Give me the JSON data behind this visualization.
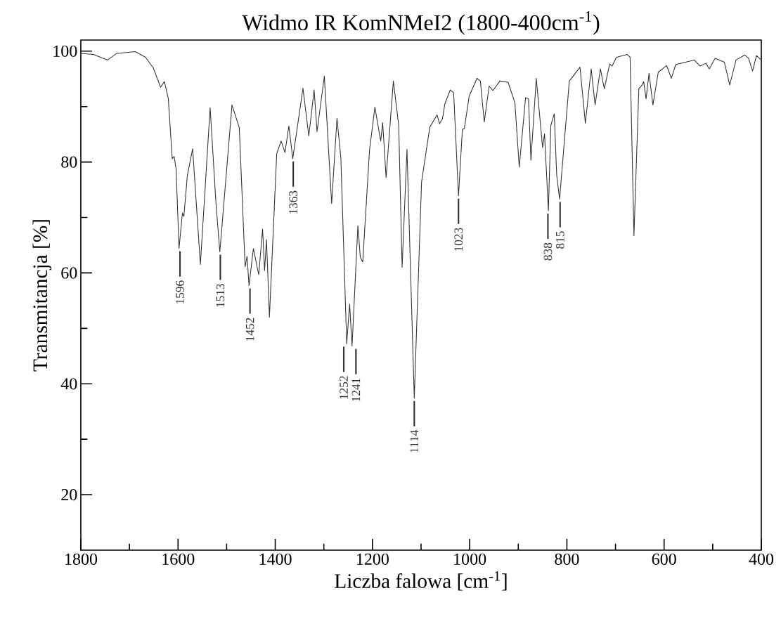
{
  "chart_data": {
    "type": "line",
    "title": "Widmo IR KomNMeI2 (1800-400cm$^{-1}$)",
    "xlabel": "Liczba falowa [cm$^{-1}$]",
    "ylabel": "Transmitancja [%]",
    "xlim": [
      1800,
      400
    ],
    "ylim": [
      10,
      102
    ],
    "xticks": [
      1800,
      {
        "value": 1700,
        "label": null
      },
      1600,
      {
        "value": 1500,
        "label": null
      },
      1400,
      {
        "value": 1300,
        "label": null
      },
      1200,
      {
        "value": 1100,
        "label": null
      },
      1000,
      {
        "value": 900,
        "label": null
      },
      800,
      {
        "value": 700,
        "label": null
      },
      600,
      {
        "value": 500,
        "label": null
      },
      400
    ],
    "yticks": [
      20,
      {
        "value": 30,
        "label": null
      },
      40,
      {
        "value": 50,
        "label": null
      },
      60,
      {
        "value": 70,
        "label": null
      },
      80,
      {
        "value": 90,
        "label": null
      },
      100
    ],
    "series": [
      {
        "color": "#333333",
        "x": [
          1800,
          1774,
          1745,
          1726,
          1688,
          1667,
          1651,
          1636,
          1628,
          1620,
          1612,
          1608,
          1604,
          1598,
          1591,
          1588,
          1581,
          1570,
          1554,
          1534,
          1522,
          1514,
          1489,
          1474,
          1462,
          1458,
          1454,
          1445,
          1434,
          1426,
          1422,
          1418,
          1412,
          1397,
          1388,
          1380,
          1372,
          1364,
          1343,
          1331,
          1320,
          1314,
          1299,
          1284,
          1273,
          1265,
          1253,
          1247,
          1242,
          1230,
          1225,
          1220,
          1206,
          1195,
          1188,
          1183,
          1179,
          1172,
          1157,
          1146,
          1139,
          1129,
          1114,
          1099,
          1082,
          1067,
          1062,
          1056,
          1051,
          1040,
          1033,
          1023,
          1015,
          1011,
          1001,
          985,
          978,
          970,
          960,
          952,
          938,
          921,
          907,
          898,
          885,
          879,
          874,
          863,
          850,
          846,
          838,
          833,
          826,
          821,
          815,
          795,
          773,
          762,
          750,
          742,
          731,
          723,
          712,
          707,
          698,
          676,
          670,
          662,
          652,
          646,
          642,
          637,
          631,
          623,
          612,
          595,
          585,
          576,
          538,
          526,
          514,
          507,
          495,
          476,
          465,
          452,
          434,
          426,
          418,
          410,
          400
        ],
        "values": [
          99.6,
          99.4,
          98.4,
          99.6,
          99.9,
          98.9,
          97.0,
          93.5,
          94.5,
          91.4,
          80.6,
          81.0,
          78.7,
          64.4,
          70.8,
          70.2,
          77.5,
          82.4,
          61.5,
          89.8,
          72.6,
          63.8,
          90.3,
          86.2,
          61.1,
          63.0,
          57.7,
          64.4,
          59.7,
          67.9,
          60.4,
          66.0,
          52.0,
          81.5,
          83.8,
          81.7,
          86.5,
          80.6,
          93.3,
          84.7,
          93.0,
          85.5,
          95.5,
          72.5,
          87.9,
          80.7,
          47.2,
          54.4,
          46.8,
          68.5,
          62.8,
          62.0,
          82.2,
          89.9,
          86.3,
          83.8,
          87.1,
          77.2,
          94.6,
          86.6,
          61.0,
          82.3,
          37.4,
          76.4,
          86.3,
          88.5,
          86.9,
          87.8,
          90.5,
          93.0,
          92.5,
          73.9,
          85.9,
          86.0,
          91.9,
          95.1,
          94.6,
          87.2,
          93.7,
          92.9,
          94.6,
          94.4,
          90.7,
          79.1,
          91.6,
          91.4,
          80.3,
          95.1,
          82.6,
          85.1,
          71.2,
          86.6,
          88.7,
          77.7,
          73.3,
          94.6,
          97.1,
          87.0,
          96.8,
          90.3,
          96.8,
          93.2,
          97.7,
          97.3,
          98.9,
          99.4,
          98.9,
          66.7,
          93.2,
          93.8,
          94.5,
          91.4,
          96.0,
          90.3,
          96.2,
          97.4,
          95.1,
          97.6,
          98.4,
          97.3,
          97.8,
          96.8,
          98.7,
          98.0,
          93.9,
          98.4,
          99.3,
          98.7,
          96.4,
          99.2,
          98.4
        ]
      }
    ],
    "annotations": [
      {
        "text": "1596",
        "x": 1596,
        "y": 64.4
      },
      {
        "text": "1513",
        "x": 1513,
        "y": 63.8
      },
      {
        "text": "1452",
        "x": 1452,
        "y": 57.7
      },
      {
        "text": "1363",
        "x": 1363,
        "y": 80.6
      },
      {
        "text": "1252",
        "x": 1252,
        "y": 47.2
      },
      {
        "text": "1241",
        "x": 1241,
        "y": 46.8
      },
      {
        "text": "1114",
        "x": 1114,
        "y": 37.4
      },
      {
        "text": "1023",
        "x": 1023,
        "y": 73.9
      },
      {
        "text": "838",
        "x": 838,
        "y": 71.2
      },
      {
        "text": "815",
        "x": 815,
        "y": 73.3
      }
    ]
  }
}
